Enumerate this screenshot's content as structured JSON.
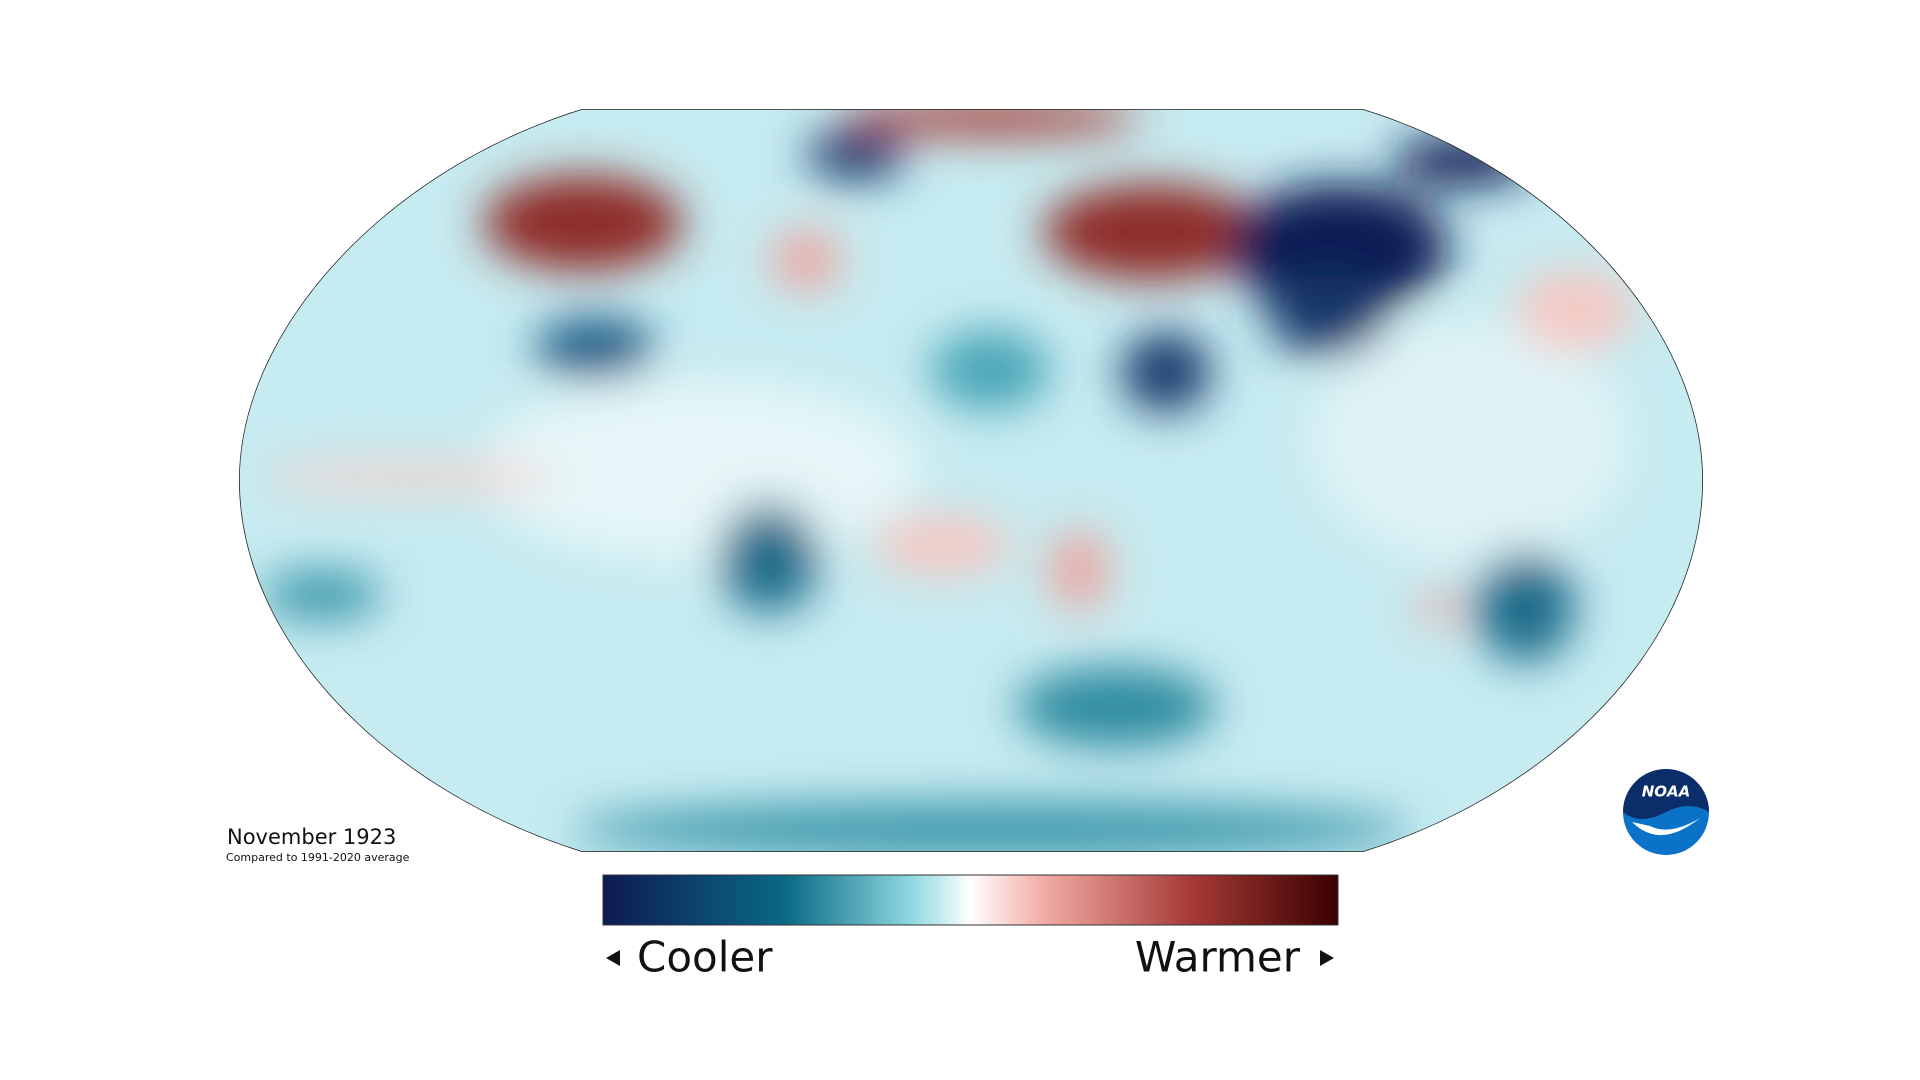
{
  "map": {
    "title": "November 1923",
    "subtitle": "Compared to 1991-2020 average"
  },
  "legend": {
    "low_label": "Cooler",
    "high_label": "Warmer"
  },
  "logo": {
    "text": "NOAA"
  }
}
